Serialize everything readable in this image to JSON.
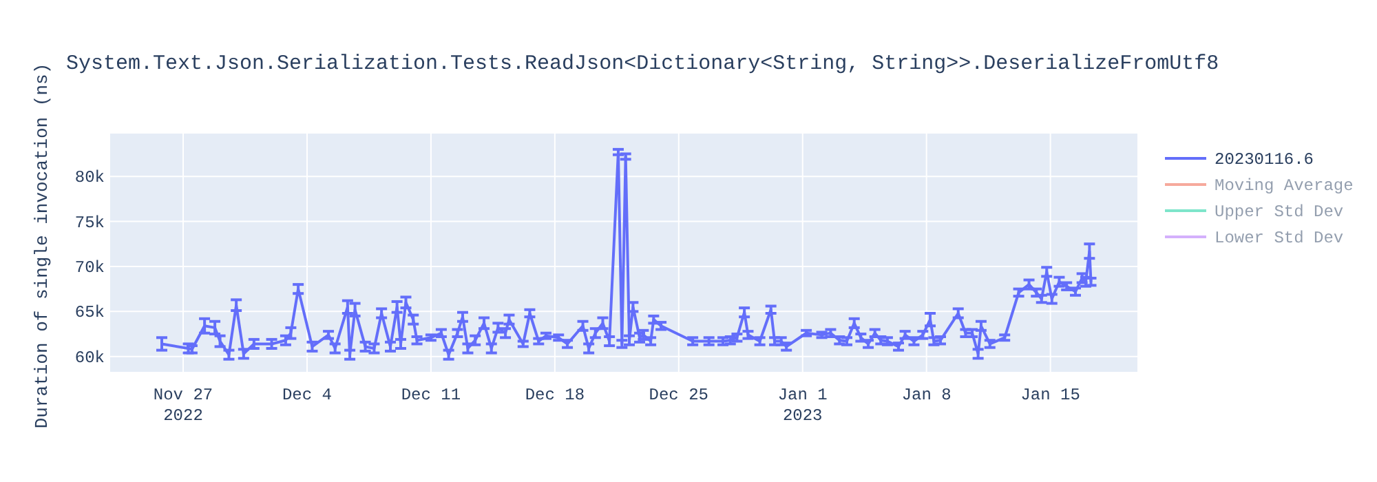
{
  "chart_data": {
    "type": "line",
    "title": "System.Text.Json.Serialization.Tests.ReadJson<Dictionary<String, String>>.DeserializeFromUtf8",
    "ylabel": "Duration of single invocation (ns)",
    "xlim": [
      "2022-11-22T21:00",
      "2023-01-19T22:00"
    ],
    "xticks": [
      {
        "value": "2022-11-27",
        "label": "Nov 27\n2022"
      },
      {
        "value": "2022-12-04",
        "label": "Dec 4"
      },
      {
        "value": "2022-12-11",
        "label": "Dec 11"
      },
      {
        "value": "2022-12-18",
        "label": "Dec 18"
      },
      {
        "value": "2022-12-25",
        "label": "Dec 25"
      },
      {
        "value": "2023-01-01",
        "label": "Jan 1\n2023"
      },
      {
        "value": "2023-01-08",
        "label": "Jan 8"
      },
      {
        "value": "2023-01-15",
        "label": "Jan 15"
      }
    ],
    "ylim": [
      58300,
      84750
    ],
    "yticks": [
      {
        "value": 60000,
        "label": "60k"
      },
      {
        "value": 65000,
        "label": "65k"
      },
      {
        "value": 70000,
        "label": "70k"
      },
      {
        "value": 75000,
        "label": "75k"
      },
      {
        "value": 80000,
        "label": "80k"
      }
    ],
    "grid": true,
    "legend": "top right",
    "line_style": "solid",
    "series": [
      {
        "name": "20230116.6",
        "color": "#636efa",
        "x": [
          "2022-11-25T19:00",
          "2022-11-27T07:00",
          "2022-11-27T12:00",
          "2022-11-28T05:00",
          "2022-11-28T19:00",
          "2022-11-29T02:00",
          "2022-11-29T14:00",
          "2022-11-30T00:00",
          "2022-11-30T10:00",
          "2022-12-01T00:00",
          "2022-12-02T00:00",
          "2022-12-02T19:00",
          "2022-12-03T02:00",
          "2022-12-03T12:00",
          "2022-12-04T07:00",
          "2022-12-05T05:00",
          "2022-12-05T14:00",
          "2022-12-06T07:00",
          "2022-12-06T10:00",
          "2022-12-06T17:00",
          "2022-12-07T07:00",
          "2022-12-07T19:00",
          "2022-12-08T05:00",
          "2022-12-08T17:00",
          "2022-12-09T02:00",
          "2022-12-09T07:00",
          "2022-12-09T14:00",
          "2022-12-10T00:00",
          "2022-12-10T05:00",
          "2022-12-11T00:00",
          "2022-12-11T14:00",
          "2022-12-12T00:00",
          "2022-12-12T12:00",
          "2022-12-12T19:00",
          "2022-12-13T02:00",
          "2022-12-13T12:00",
          "2022-12-14T00:00",
          "2022-12-14T10:00",
          "2022-12-14T19:00",
          "2022-12-15T05:00",
          "2022-12-15T10:00",
          "2022-12-16T05:00",
          "2022-12-16T14:00",
          "2022-12-17T02:00",
          "2022-12-17T12:00",
          "2022-12-18T05:00",
          "2022-12-18T17:00",
          "2022-12-19T14:00",
          "2022-12-19T22:00",
          "2022-12-20T07:00",
          "2022-12-20T17:00",
          "2022-12-21T02:00",
          "2022-12-21T14:00",
          "2022-12-21T19:00",
          "2022-12-22T00:00",
          "2022-12-22T05:00",
          "2022-12-22T10:00",
          "2022-12-22T19:00",
          "2022-12-23T00:00",
          "2022-12-23T10:00",
          "2022-12-23T14:00",
          "2022-12-24T00:00",
          "2022-12-25T19:00",
          "2022-12-26T17:00",
          "2022-12-27T12:00",
          "2022-12-27T22:00",
          "2022-12-28T07:00",
          "2022-12-28T17:00",
          "2022-12-28T22:00",
          "2022-12-29T14:00",
          "2022-12-30T05:00",
          "2022-12-30T10:00",
          "2022-12-30T19:00",
          "2022-12-31T02:00",
          "2023-01-01T05:00",
          "2023-01-02T02:00",
          "2023-01-02T14:00",
          "2023-01-03T02:00",
          "2023-01-03T12:00",
          "2023-01-03T22:00",
          "2023-01-04T07:00",
          "2023-01-04T17:00",
          "2023-01-05T02:00",
          "2023-01-05T10:00",
          "2023-01-05T19:00",
          "2023-01-06T10:00",
          "2023-01-06T19:00",
          "2023-01-07T07:00",
          "2023-01-07T19:00",
          "2023-01-08T05:00",
          "2023-01-08T10:00",
          "2023-01-08T19:00",
          "2023-01-09T19:00",
          "2023-01-10T05:00",
          "2023-01-10T14:00",
          "2023-01-10T22:00",
          "2023-01-11T02:00",
          "2023-01-11T14:00",
          "2023-01-12T10:00",
          "2023-01-13T05:00",
          "2023-01-13T19:00",
          "2023-01-14T05:00",
          "2023-01-14T12:00",
          "2023-01-14T19:00",
          "2023-01-15T02:00",
          "2023-01-15T12:00",
          "2023-01-15T22:00",
          "2023-01-16T10:00",
          "2023-01-16T19:00",
          "2023-01-17T00:00",
          "2023-01-17T05:00",
          "2023-01-17T07:00"
        ],
        "values": [
          61400,
          60900,
          60800,
          63400,
          63200,
          61700,
          60200,
          65700,
          60300,
          61400,
          61400,
          61800,
          62600,
          67500,
          61100,
          62400,
          60900,
          65500,
          60200,
          65200,
          61100,
          60900,
          64800,
          61100,
          65500,
          61400,
          66000,
          64100,
          61800,
          62100,
          62600,
          60200,
          62600,
          64400,
          60900,
          61800,
          63700,
          60900,
          63200,
          62600,
          64100,
          61400,
          64800,
          61700,
          62300,
          62100,
          61400,
          63400,
          60900,
          62600,
          63700,
          61700,
          82700,
          61400,
          82200,
          61800,
          65500,
          62100,
          62400,
          61700,
          64100,
          63400,
          61700,
          61700,
          61700,
          61800,
          62100,
          64900,
          62400,
          61700,
          65200,
          61700,
          61700,
          61100,
          62600,
          62400,
          62600,
          61800,
          61700,
          63700,
          62100,
          61400,
          62600,
          61800,
          61700,
          61100,
          62400,
          61700,
          62400,
          64100,
          61700,
          61800,
          64800,
          62600,
          62600,
          60300,
          63400,
          61400,
          62100,
          67100,
          68000,
          67100,
          66400,
          69400,
          66400,
          68300,
          67800,
          67200,
          68700,
          68300,
          71700,
          68300
        ],
        "errors": [
          700,
          500,
          400,
          800,
          700,
          600,
          500,
          600,
          500,
          500,
          500,
          500,
          600,
          500,
          500,
          400,
          500,
          700,
          500,
          700,
          500,
          500,
          500,
          500,
          600,
          500,
          600,
          500,
          400,
          300,
          400,
          500,
          400,
          500,
          500,
          500,
          600,
          500,
          500,
          500,
          500,
          300,
          400,
          300,
          300,
          300,
          400,
          500,
          500,
          500,
          600,
          500,
          300,
          400,
          300,
          500,
          500,
          500,
          500,
          400,
          400,
          400,
          400,
          400,
          400,
          400,
          400,
          500,
          400,
          400,
          400,
          400,
          400,
          400,
          300,
          300,
          400,
          400,
          400,
          500,
          400,
          400,
          400,
          400,
          400,
          400,
          400,
          400,
          400,
          700,
          400,
          400,
          500,
          400,
          400,
          500,
          500,
          400,
          300,
          400,
          500,
          400,
          400,
          500,
          500,
          500,
          400,
          400,
          500,
          500,
          800,
          400
        ]
      },
      {
        "name": "Moving Average",
        "color": "#ef553b"
      },
      {
        "name": "Upper Std Dev",
        "color": "#00cc96"
      },
      {
        "name": "Lower Std Dev",
        "color": "#ab63fa"
      }
    ]
  }
}
